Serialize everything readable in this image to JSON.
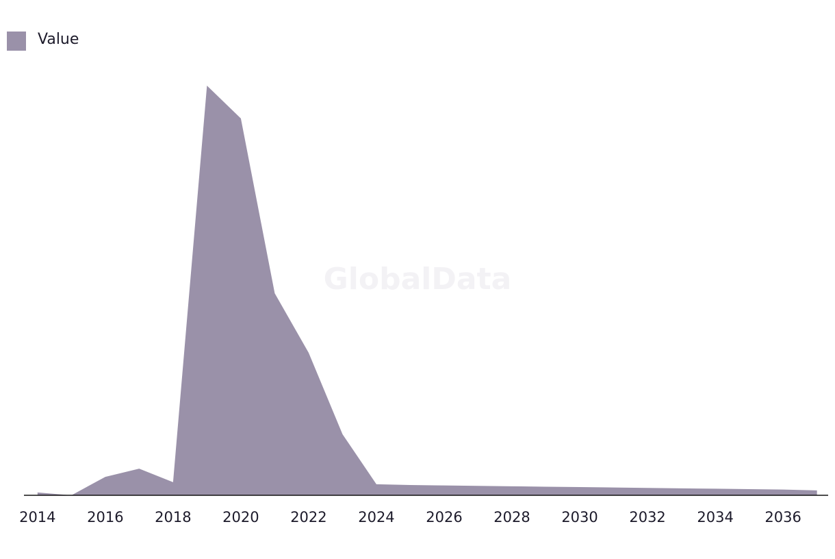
{
  "chart_data": {
    "type": "area",
    "watermark": "GlobalData",
    "color": "#9a91a9",
    "x": [
      2014,
      2015,
      2016,
      2017,
      2018,
      2019,
      2020,
      2021,
      2022,
      2023,
      2024,
      2025,
      2026,
      2027,
      2028,
      2029,
      2030,
      2031,
      2032,
      2033,
      2034,
      2035,
      2036,
      2037
    ],
    "series": [
      {
        "name": "Value",
        "color": "#9a91a9",
        "values": [
          0.7,
          0,
          4.5,
          6.5,
          3.2,
          100,
          92,
          49.3,
          34.8,
          14.9,
          2.7,
          2.5,
          2.4,
          2.3,
          2.2,
          2.1,
          2.0,
          1.9,
          1.8,
          1.7,
          1.6,
          1.5,
          1.4,
          1.2
        ]
      }
    ],
    "xlim": [
      2013.6,
      2037.33
    ],
    "ylim": [
      0,
      100
    ],
    "xticks": [
      2014,
      2016,
      2018,
      2020,
      2022,
      2024,
      2026,
      2028,
      2030,
      2032,
      2034,
      2036
    ],
    "legend": "top-left"
  }
}
